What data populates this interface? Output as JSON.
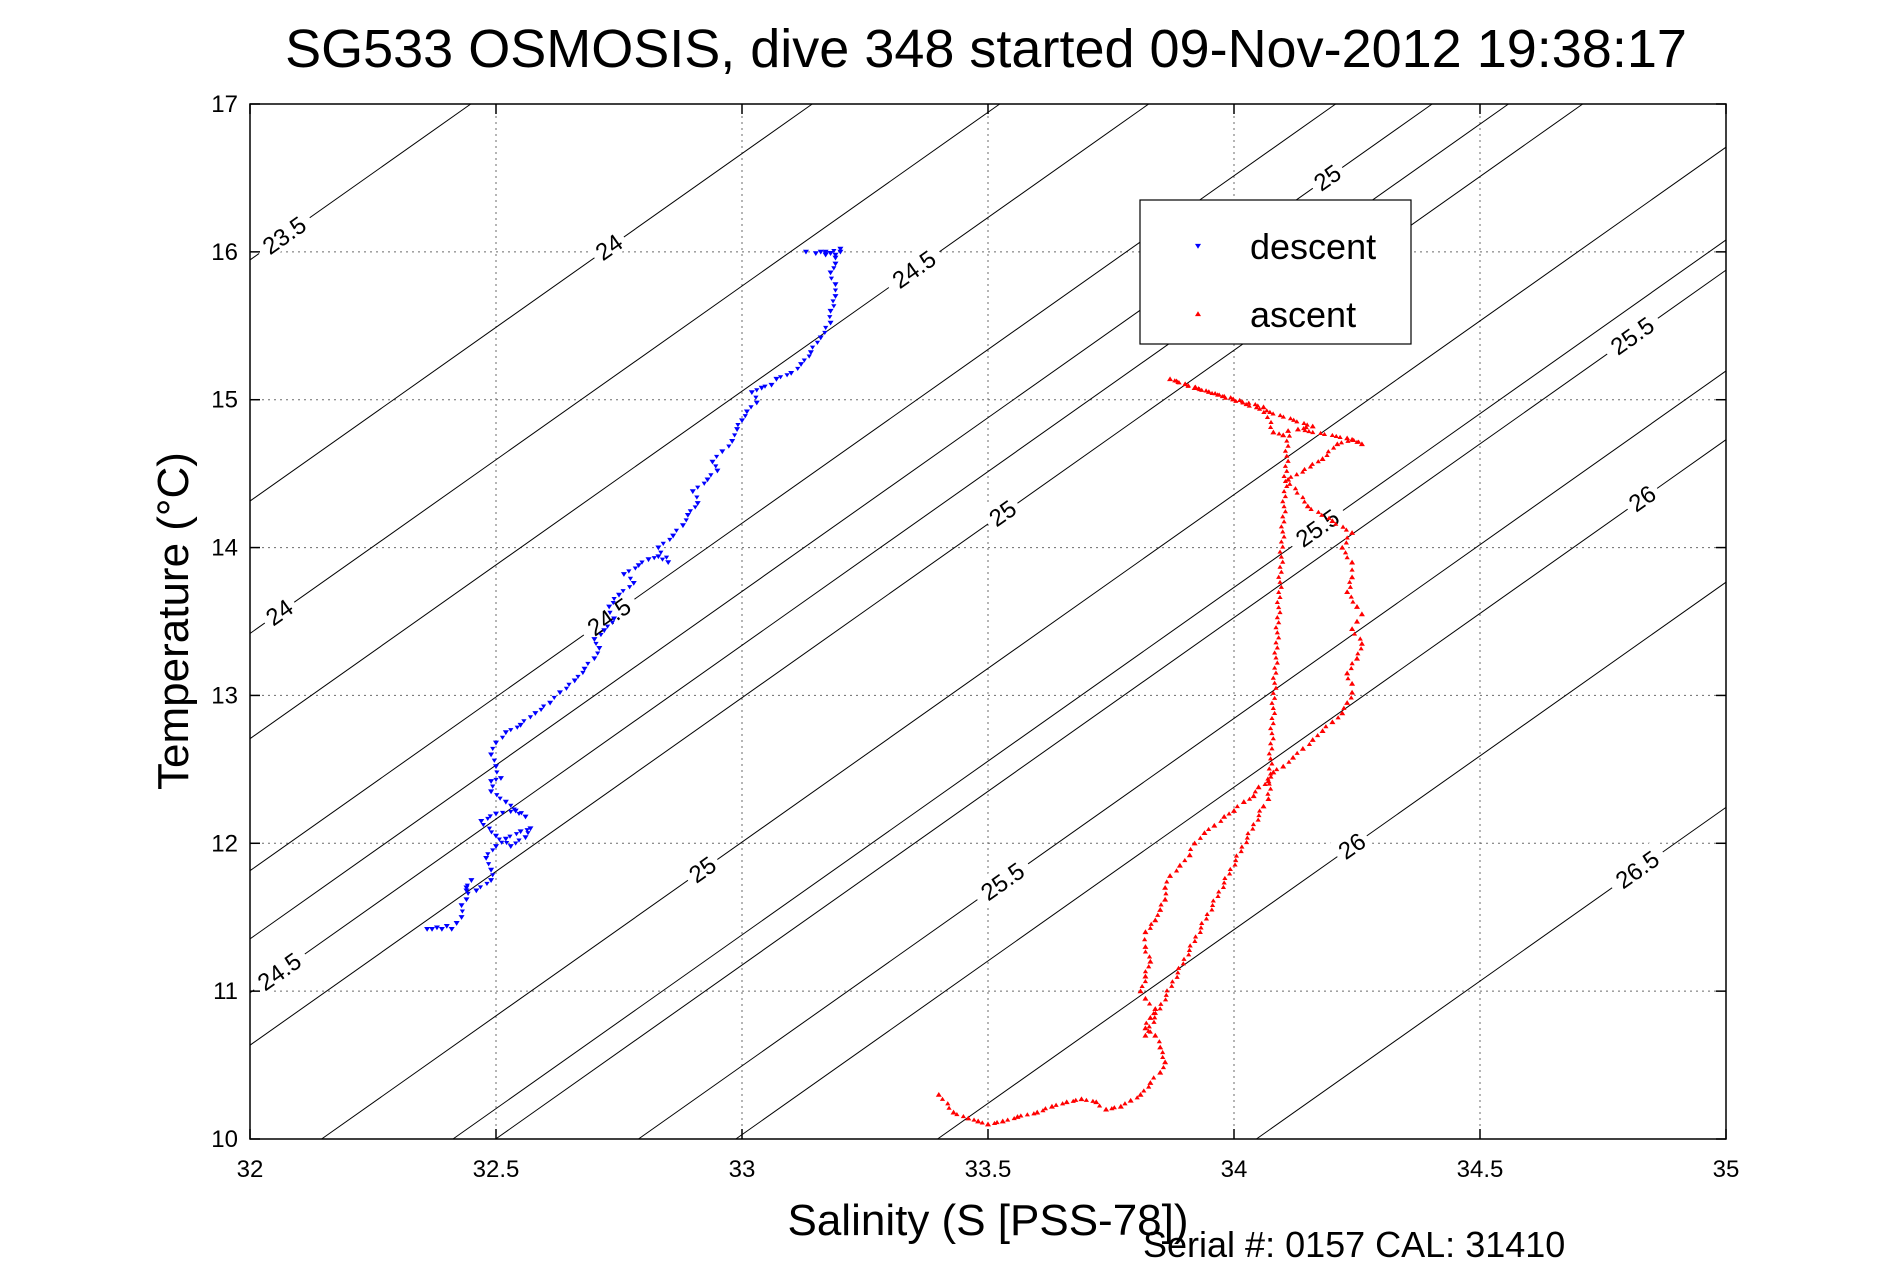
{
  "chart_data": {
    "type": "scatter",
    "title": "SG533 OSMOSIS, dive 348 started 09-Nov-2012 19:38:17",
    "xlabel": "Salinity (S [PSS-78])",
    "ylabel": "Temperature (°C)",
    "xlim": [
      32,
      35
    ],
    "ylim": [
      10,
      17
    ],
    "x_ticks": [
      "32",
      "32.5",
      "33",
      "33.5",
      "34",
      "34.5",
      "35"
    ],
    "y_ticks": [
      "10",
      "11",
      "12",
      "13",
      "14",
      "15",
      "16",
      "17"
    ],
    "grid": true,
    "legend_position": "top-right",
    "footer": "Serial #: 0157  CAL: 31410",
    "series": [
      {
        "name": "descent",
        "color": "#0000ff",
        "marker": "down-triangle",
        "x": [
          32.36,
          32.37,
          32.38,
          32.39,
          32.4,
          32.41,
          32.42,
          32.43,
          32.43,
          32.44,
          32.44,
          32.45,
          32.44,
          32.46,
          32.49,
          32.49,
          32.48,
          32.5,
          32.52,
          32.55,
          32.57,
          32.56,
          32.53,
          32.5,
          32.47,
          32.5,
          32.54,
          32.56,
          32.52,
          32.49,
          32.49,
          32.51,
          32.5,
          32.49,
          32.5,
          32.52,
          32.55,
          32.58,
          32.61,
          32.63,
          32.66,
          32.68,
          32.7,
          32.71,
          32.7,
          32.72,
          32.74,
          32.73,
          32.75,
          32.78,
          32.76,
          32.79,
          32.81,
          32.83,
          32.85,
          32.83,
          32.86,
          32.88,
          32.89,
          32.91,
          32.9,
          32.93,
          32.95,
          32.94,
          32.96,
          32.98,
          32.99,
          33.0,
          33.01,
          33.03,
          33.02,
          33.04,
          33.06,
          33.07,
          33.1,
          33.12,
          33.14,
          33.16,
          33.18,
          33.18,
          33.19,
          33.19,
          33.18,
          33.19,
          33.19,
          33.18,
          33.17,
          33.16,
          33.17,
          33.19,
          33.2,
          33.2,
          33.17,
          33.15,
          33.13
        ],
        "y": [
          11.42,
          11.42,
          11.43,
          11.42,
          11.44,
          11.42,
          11.46,
          11.5,
          11.58,
          11.62,
          11.7,
          11.75,
          11.68,
          11.68,
          11.75,
          11.82,
          11.9,
          11.98,
          12.03,
          12.08,
          12.1,
          12.04,
          11.98,
          12.05,
          12.15,
          12.2,
          12.22,
          12.18,
          12.28,
          12.35,
          12.42,
          12.44,
          12.52,
          12.6,
          12.68,
          12.75,
          12.8,
          12.88,
          12.95,
          13.02,
          13.1,
          13.18,
          13.25,
          13.32,
          13.38,
          13.44,
          13.52,
          13.6,
          13.68,
          13.76,
          13.82,
          13.88,
          13.92,
          13.94,
          13.9,
          14.0,
          14.08,
          14.15,
          14.22,
          14.3,
          14.38,
          14.46,
          14.52,
          14.58,
          14.65,
          14.72,
          14.8,
          14.86,
          14.92,
          14.98,
          15.05,
          15.08,
          15.1,
          15.14,
          15.18,
          15.24,
          15.32,
          15.42,
          15.52,
          15.6,
          15.7,
          15.78,
          15.86,
          15.92,
          15.96,
          15.99,
          16.0,
          16.0,
          15.99,
          15.98,
          16.0,
          16.02,
          15.98,
          15.99,
          16.0
        ]
      },
      {
        "name": "ascent",
        "color": "#ff0000",
        "marker": "up-triangle",
        "x": [
          33.4,
          33.43,
          33.46,
          33.48,
          33.5,
          33.53,
          33.56,
          33.6,
          33.63,
          33.66,
          33.69,
          33.72,
          33.74,
          33.77,
          33.79,
          33.81,
          33.83,
          33.85,
          33.86,
          33.85,
          33.84,
          33.82,
          33.83,
          33.84,
          33.82,
          33.81,
          33.82,
          33.83,
          33.82,
          33.82,
          33.84,
          33.85,
          33.86,
          33.86,
          33.87,
          33.89,
          33.91,
          33.92,
          33.94,
          33.96,
          33.98,
          34.0,
          34.02,
          34.04,
          34.05,
          34.07,
          34.08,
          34.1,
          34.12,
          34.14,
          34.16,
          34.18,
          34.2,
          34.22,
          34.23,
          34.24,
          34.24,
          34.23,
          34.25,
          34.26,
          34.24,
          34.25,
          34.26,
          34.25,
          34.23,
          34.24,
          34.24,
          34.22,
          34.24,
          34.2,
          34.15,
          34.11,
          34.18,
          34.21,
          34.24,
          34.26,
          34.23,
          34.13,
          34.16,
          33.87,
          33.92,
          34.06,
          34.08,
          34.1,
          34.11,
          34.07,
          34.06,
          33.82
        ],
        "y": [
          10.3,
          10.18,
          10.14,
          10.12,
          10.1,
          10.12,
          10.15,
          10.18,
          10.22,
          10.25,
          10.27,
          10.25,
          10.2,
          10.22,
          10.26,
          10.3,
          10.38,
          10.45,
          10.52,
          10.62,
          10.7,
          10.75,
          10.82,
          10.88,
          10.95,
          11.0,
          11.1,
          11.2,
          11.3,
          11.4,
          11.48,
          11.55,
          11.62,
          11.7,
          11.78,
          11.85,
          11.92,
          12.0,
          12.07,
          12.12,
          12.18,
          12.22,
          12.28,
          12.32,
          12.38,
          12.42,
          12.48,
          12.52,
          12.58,
          12.64,
          12.7,
          12.76,
          12.82,
          12.88,
          12.95,
          13.02,
          13.08,
          13.15,
          13.25,
          13.35,
          13.45,
          13.5,
          13.55,
          13.6,
          13.7,
          13.8,
          13.9,
          14.0,
          14.1,
          14.18,
          14.28,
          14.46,
          14.6,
          14.7,
          14.73,
          14.7,
          14.74,
          14.8,
          14.82,
          15.14,
          15.08,
          14.95,
          14.78,
          14.76,
          14.79,
          12.3,
          12.25,
          10.7
        ]
      }
    ],
    "isopycnals": [
      {
        "sigma": "23.5",
        "kind": "sigma",
        "labels": [
          [
            32.07,
            16.11
          ]
        ]
      },
      {
        "sigma": "24",
        "kind": "sigma",
        "labels": [
          [
            32.73,
            16.03
          ],
          [
            32.06,
            13.56
          ]
        ]
      },
      {
        "sigma": "24.5",
        "kind": "sigma",
        "labels": [
          [
            33.35,
            15.88
          ],
          [
            32.73,
            13.53
          ],
          [
            32.06,
            11.13
          ]
        ]
      },
      {
        "sigma": "25",
        "kind": "sigma",
        "labels": [
          [
            34.19,
            16.5
          ],
          [
            33.53,
            14.23
          ],
          [
            32.92,
            11.82
          ]
        ]
      },
      {
        "sigma": "25.5",
        "kind": "sigma",
        "labels": [
          [
            34.81,
            15.43
          ],
          [
            34.17,
            14.13
          ],
          [
            33.53,
            11.74
          ]
        ]
      },
      {
        "sigma": "26",
        "kind": "sigma",
        "labels": [
          [
            34.83,
            14.33
          ],
          [
            34.24,
            11.98
          ]
        ]
      },
      {
        "sigma": "26.5",
        "kind": "sigma",
        "labels": [
          [
            34.82,
            11.82
          ]
        ]
      }
    ]
  }
}
